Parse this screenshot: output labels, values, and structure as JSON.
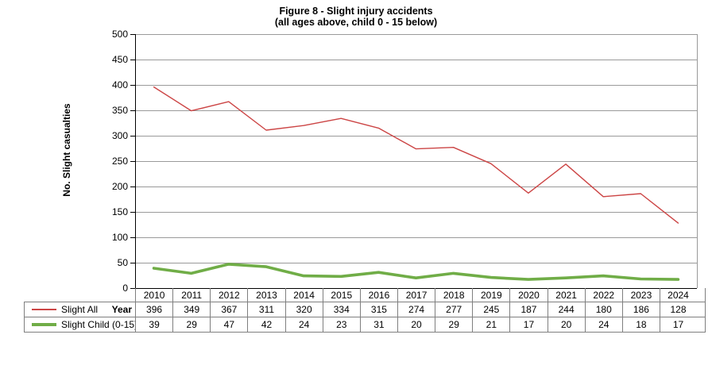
{
  "title": {
    "line1": "Figure 8 - Slight injury accidents",
    "line2": "(all ages above, child 0 - 15 below)"
  },
  "chart_data": {
    "type": "line",
    "title": "Figure 8 - Slight injury accidents (all ages above, child 0 - 15 below)",
    "xlabel": "Year",
    "ylabel": "No. Slight casualties",
    "categories": [
      "2010",
      "2011",
      "2012",
      "2013",
      "2014",
      "2015",
      "2016",
      "2017",
      "2018",
      "2019",
      "2020",
      "2021",
      "2022",
      "2023",
      "2024"
    ],
    "series": [
      {
        "name": "Slight All",
        "color": "#CC4545",
        "line_width": 1.4,
        "key_height": 2,
        "values": [
          396,
          349,
          367,
          311,
          320,
          334,
          315,
          274,
          277,
          245,
          187,
          244,
          180,
          186,
          128
        ]
      },
      {
        "name": "Slight Child (0-15)",
        "color": "#70AD47",
        "line_width": 3.6,
        "key_height": 4,
        "values": [
          39,
          29,
          47,
          42,
          24,
          23,
          31,
          20,
          29,
          21,
          17,
          20,
          24,
          18,
          17
        ]
      }
    ],
    "ylim": [
      0,
      500
    ],
    "ytick_step": 50,
    "grid": "horizontal",
    "legend_position": "data-table-left",
    "data_table": true
  },
  "colors": {
    "background": "#FFFFFF",
    "grid": "#9A9A9A",
    "plot_border": "#9A9A9A",
    "axis": "#000000",
    "table_border": "#7F7F7F",
    "text": "#000000"
  }
}
